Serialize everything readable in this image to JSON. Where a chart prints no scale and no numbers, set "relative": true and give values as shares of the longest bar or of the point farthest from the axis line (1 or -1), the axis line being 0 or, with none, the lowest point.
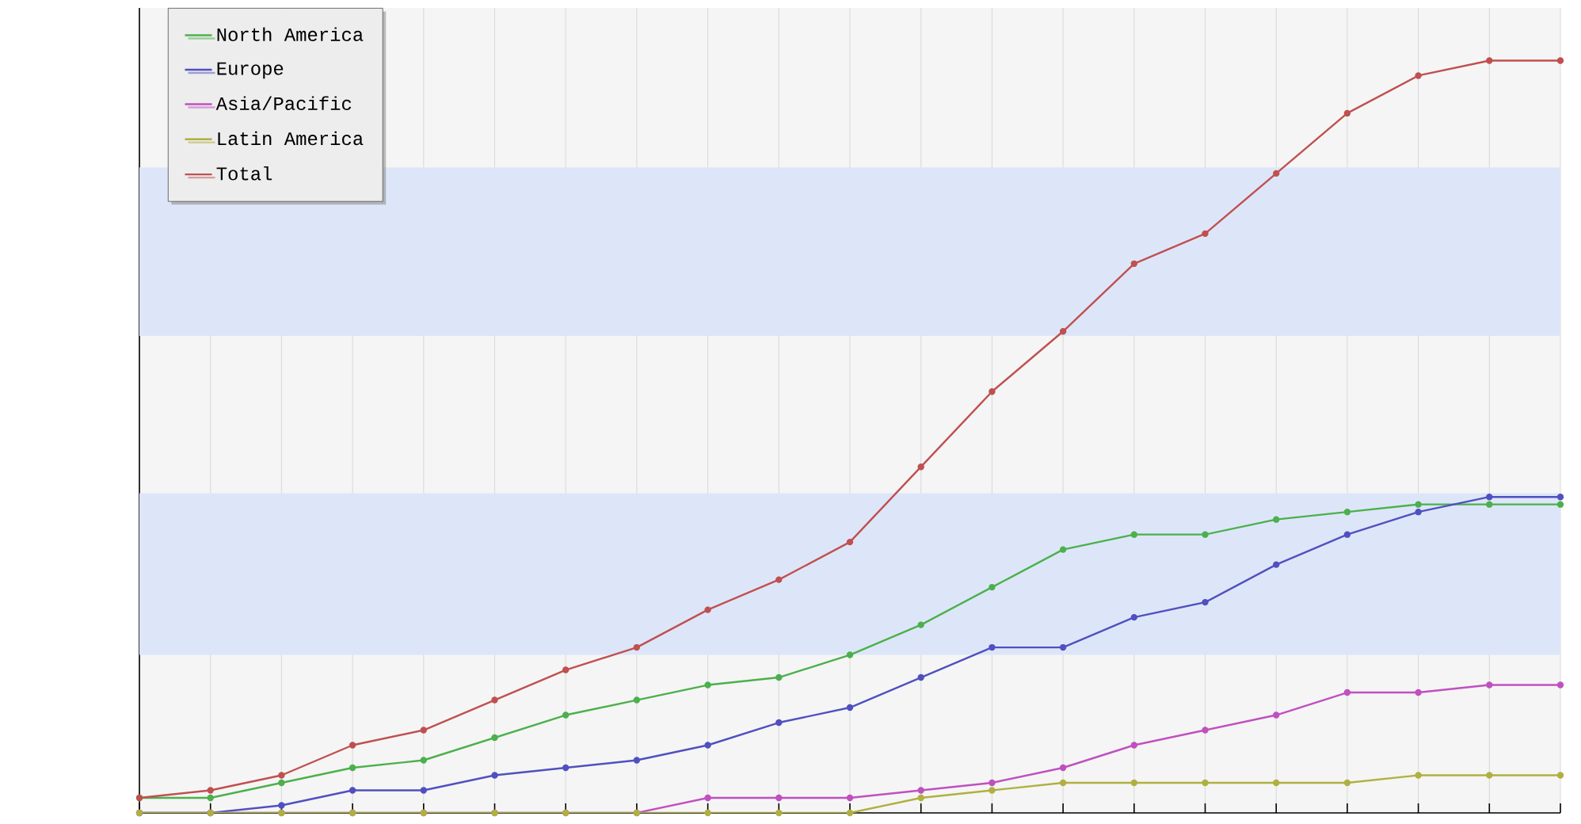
{
  "chart_data": {
    "type": "line",
    "relative": true,
    "categories": [
      null,
      null,
      null,
      null,
      null,
      null,
      null,
      null,
      null,
      null,
      null,
      null,
      null,
      null,
      null,
      null,
      null,
      null,
      null,
      null,
      null
    ],
    "series": [
      {
        "name": "North America",
        "color": "#4cb04c",
        "values": [
          0.02,
          0.02,
          0.04,
          0.06,
          0.07,
          0.1,
          0.13,
          0.15,
          0.17,
          0.18,
          0.21,
          0.25,
          0.3,
          0.35,
          0.37,
          0.37,
          0.39,
          0.4,
          0.41,
          0.41,
          0.41
        ]
      },
      {
        "name": "Europe",
        "color": "#5050c0",
        "values": [
          0,
          0,
          0.01,
          0.03,
          0.03,
          0.05,
          0.06,
          0.07,
          0.09,
          0.12,
          0.14,
          0.18,
          0.22,
          0.22,
          0.26,
          0.28,
          0.33,
          0.37,
          0.4,
          0.42,
          0.42
        ]
      },
      {
        "name": "Asia/Pacific",
        "color": "#c050c0",
        "values": [
          0,
          0,
          0,
          0,
          0,
          0,
          0,
          0,
          0.02,
          0.02,
          0.02,
          0.03,
          0.04,
          0.06,
          0.09,
          0.11,
          0.13,
          0.16,
          0.16,
          0.17,
          0.17
        ]
      },
      {
        "name": "Latin America",
        "color": "#b0b040",
        "values": [
          0,
          0,
          0,
          0,
          0,
          0,
          0,
          0,
          0,
          0,
          0,
          0.02,
          0.03,
          0.04,
          0.04,
          0.04,
          0.04,
          0.04,
          0.05,
          0.05,
          0.05
        ]
      },
      {
        "name": "Total",
        "color": "#c05050",
        "values": [
          0.02,
          0.03,
          0.05,
          0.09,
          0.11,
          0.15,
          0.19,
          0.22,
          0.27,
          0.31,
          0.36,
          0.46,
          0.56,
          0.64,
          0.73,
          0.77,
          0.85,
          0.93,
          0.98,
          1,
          1
        ]
      }
    ],
    "bands": [
      {
        "axis": "y",
        "from": 0.21,
        "to": 0.425,
        "color": "#dde6f8"
      },
      {
        "axis": "y",
        "from": 0.634,
        "to": 0.858,
        "color": "#dde6f8"
      }
    ],
    "grid": "x",
    "legend": "top left",
    "tick_labels": false,
    "marker": "circle"
  }
}
